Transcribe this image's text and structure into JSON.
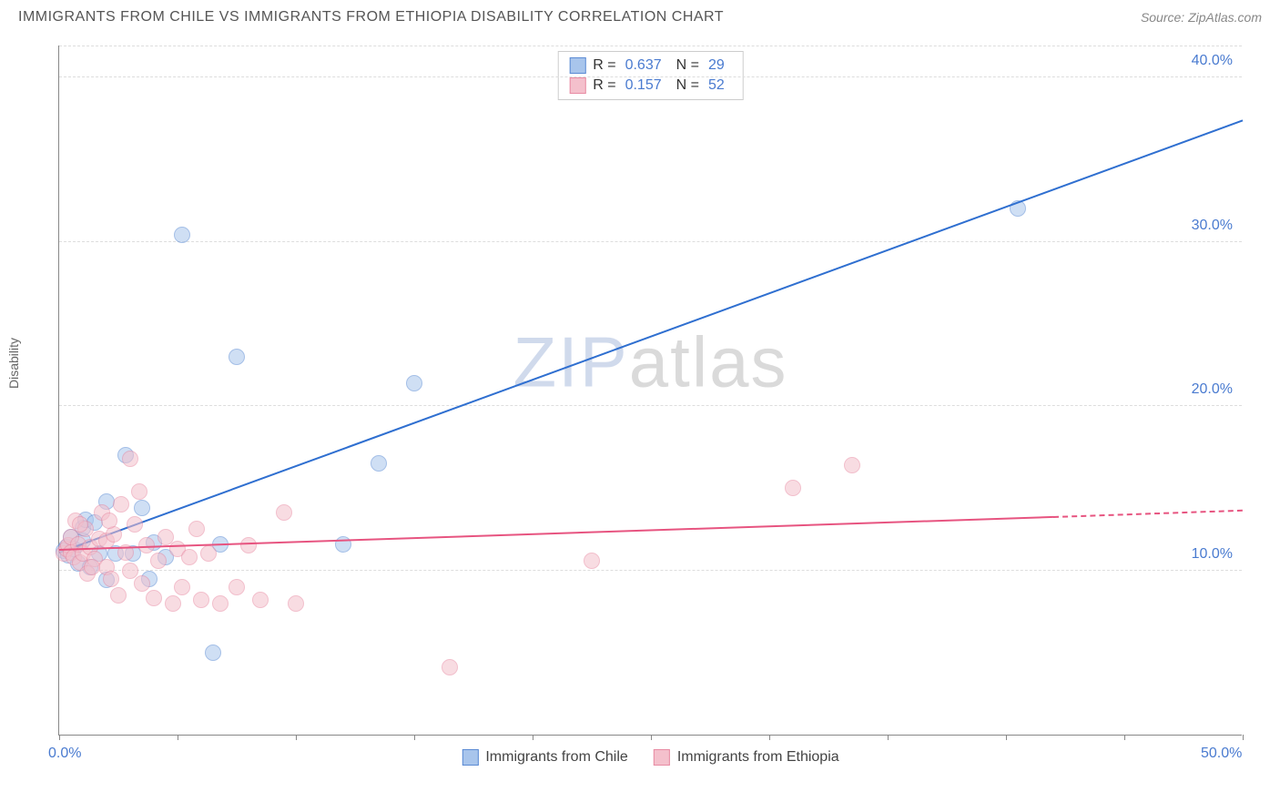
{
  "title": "IMMIGRANTS FROM CHILE VS IMMIGRANTS FROM ETHIOPIA DISABILITY CORRELATION CHART",
  "source_label": "Source: ",
  "source_name": "ZipAtlas.com",
  "ylabel": "Disability",
  "watermark_prefix": "ZIP",
  "watermark_suffix": "atlas",
  "chart": {
    "type": "scatter",
    "background_color": "#ffffff",
    "grid_color": "#dddddd",
    "axis_color": "#888888",
    "xlim": [
      0,
      50
    ],
    "ylim": [
      0,
      42
    ],
    "x_tick_positions": [
      0,
      5,
      10,
      15,
      20,
      25,
      30,
      35,
      40,
      45,
      50
    ],
    "x_tick_labels_shown": {
      "0": "0.0%",
      "50": "50.0%"
    },
    "y_tick_positions": [
      10,
      20,
      30,
      40
    ],
    "y_tick_labels": {
      "10": "10.0%",
      "20": "20.0%",
      "30": "30.0%",
      "40": "40.0%"
    },
    "label_fontsize": 16,
    "label_color": "#4a7bd0",
    "marker_radius": 9,
    "marker_opacity": 0.55,
    "series": [
      {
        "name": "Immigrants from Chile",
        "color_fill": "#a8c5ec",
        "color_stroke": "#5b8bd4",
        "line_color": "#2f6fd0",
        "R": "0.637",
        "N": "29",
        "trend": {
          "x1": 0,
          "y1": 11.0,
          "x2": 50,
          "y2": 37.3
        },
        "points": [
          [
            0.2,
            11.2
          ],
          [
            0.3,
            11.4
          ],
          [
            0.4,
            10.9
          ],
          [
            0.5,
            12.0
          ],
          [
            0.6,
            11.3
          ],
          [
            0.8,
            10.4
          ],
          [
            1.0,
            11.8
          ],
          [
            1.0,
            12.6
          ],
          [
            1.1,
            13.1
          ],
          [
            1.3,
            10.2
          ],
          [
            1.5,
            12.9
          ],
          [
            1.7,
            11.0
          ],
          [
            2.0,
            9.4
          ],
          [
            2.0,
            14.2
          ],
          [
            2.4,
            11.0
          ],
          [
            2.8,
            17.0
          ],
          [
            3.1,
            11.0
          ],
          [
            3.5,
            13.8
          ],
          [
            4.0,
            11.7
          ],
          [
            4.5,
            10.8
          ],
          [
            5.2,
            30.4
          ],
          [
            6.5,
            5.0
          ],
          [
            6.8,
            11.6
          ],
          [
            7.5,
            23.0
          ],
          [
            12.0,
            11.6
          ],
          [
            13.5,
            16.5
          ],
          [
            15.0,
            21.4
          ],
          [
            40.5,
            32.0
          ],
          [
            3.8,
            9.5
          ]
        ]
      },
      {
        "name": "Immigrants from Ethiopia",
        "color_fill": "#f4c0cc",
        "color_stroke": "#e88ba3",
        "line_color": "#e75480",
        "R": "0.157",
        "N": "52",
        "trend": {
          "x1": 0,
          "y1": 11.2,
          "x2": 42,
          "y2": 13.2
        },
        "trend_dash": {
          "x1": 42,
          "y1": 13.2,
          "x2": 50,
          "y2": 13.6
        },
        "points": [
          [
            0.2,
            11.0
          ],
          [
            0.3,
            11.3
          ],
          [
            0.4,
            11.5
          ],
          [
            0.5,
            11.1
          ],
          [
            0.5,
            12.0
          ],
          [
            0.6,
            10.8
          ],
          [
            0.7,
            13.0
          ],
          [
            0.8,
            11.6
          ],
          [
            0.9,
            10.5
          ],
          [
            1.0,
            11.0
          ],
          [
            1.1,
            12.5
          ],
          [
            1.2,
            9.8
          ],
          [
            1.3,
            11.4
          ],
          [
            1.5,
            10.7
          ],
          [
            1.7,
            11.9
          ],
          [
            1.8,
            13.5
          ],
          [
            2.0,
            10.2
          ],
          [
            2.0,
            11.8
          ],
          [
            2.2,
            9.5
          ],
          [
            2.3,
            12.2
          ],
          [
            2.5,
            8.5
          ],
          [
            2.6,
            14.0
          ],
          [
            2.8,
            11.1
          ],
          [
            3.0,
            10.0
          ],
          [
            3.2,
            12.8
          ],
          [
            3.4,
            14.8
          ],
          [
            3.5,
            9.2
          ],
          [
            3.7,
            11.5
          ],
          [
            4.0,
            8.3
          ],
          [
            4.2,
            10.6
          ],
          [
            4.5,
            12.0
          ],
          [
            4.8,
            8.0
          ],
          [
            5.0,
            11.3
          ],
          [
            5.2,
            9.0
          ],
          [
            5.5,
            10.8
          ],
          [
            5.8,
            12.5
          ],
          [
            6.0,
            8.2
          ],
          [
            6.3,
            11.0
          ],
          [
            6.8,
            8.0
          ],
          [
            7.5,
            9.0
          ],
          [
            8.0,
            11.5
          ],
          [
            8.5,
            8.2
          ],
          [
            9.5,
            13.5
          ],
          [
            10.0,
            8.0
          ],
          [
            3.0,
            16.8
          ],
          [
            16.5,
            4.1
          ],
          [
            22.5,
            10.6
          ],
          [
            31.0,
            15.0
          ],
          [
            33.5,
            16.4
          ],
          [
            1.4,
            10.2
          ],
          [
            0.9,
            12.8
          ],
          [
            2.1,
            13.0
          ]
        ]
      }
    ],
    "legend_top": {
      "R_label": "R =",
      "N_label": "N ="
    }
  }
}
